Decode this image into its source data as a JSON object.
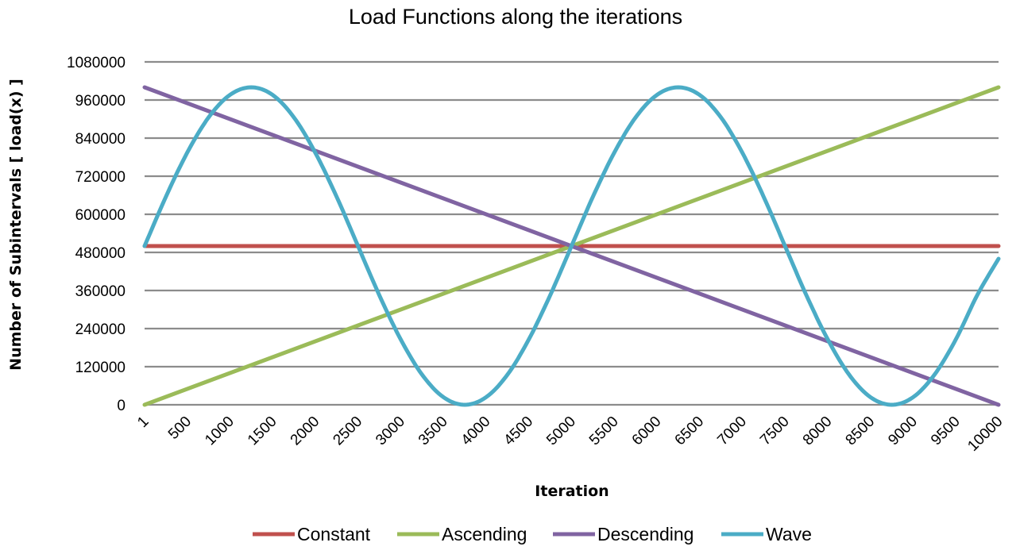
{
  "chart_data": {
    "type": "line",
    "title": "Load Functions along the iterations",
    "xlabel": "Iteration",
    "ylabel": "Number of Subintervals  [ load(x) ]",
    "xlim": [
      1,
      10000
    ],
    "ylim": [
      0,
      1080000
    ],
    "x_ticks": [
      "1",
      "500",
      "1000",
      "1500",
      "2000",
      "2500",
      "3000",
      "3500",
      "4000",
      "4500",
      "5000",
      "5500",
      "6000",
      "6500",
      "7000",
      "7500",
      "8000",
      "8500",
      "9000",
      "9500",
      "10000"
    ],
    "y_ticks": [
      "0",
      "120000",
      "240000",
      "360000",
      "480000",
      "600000",
      "720000",
      "840000",
      "960000",
      "1080000"
    ],
    "grid": true,
    "legend_position": "bottom",
    "series": [
      {
        "name": "Constant",
        "color": "#c0504d",
        "x": [
          1,
          10000
        ],
        "y": [
          500000,
          500000
        ]
      },
      {
        "name": "Ascending",
        "color": "#9bbb59",
        "x": [
          1,
          2500,
          5000,
          7500,
          10000
        ],
        "y": [
          0,
          250000,
          500000,
          750000,
          1000000
        ]
      },
      {
        "name": "Descending",
        "color": "#8064a2",
        "x": [
          1,
          2500,
          5000,
          7500,
          10000
        ],
        "y": [
          1000000,
          750000,
          500000,
          250000,
          0
        ]
      },
      {
        "name": "Wave",
        "color": "#4bacc6",
        "x": [
          1,
          250,
          500,
          750,
          1000,
          1250,
          1500,
          1750,
          2000,
          2250,
          2500,
          2750,
          3000,
          3250,
          3500,
          3750,
          4000,
          4250,
          4500,
          4750,
          5000,
          5250,
          5500,
          5750,
          6000,
          6250,
          6500,
          6750,
          7000,
          7250,
          7500,
          7750,
          8000,
          8250,
          8500,
          8750,
          9000,
          9250,
          9500,
          9750,
          10000
        ],
        "y": [
          500000,
          655000,
          794000,
          905000,
          976000,
          1000000,
          976000,
          905000,
          794000,
          655000,
          500000,
          345000,
          206000,
          95000,
          24000,
          0,
          24000,
          95000,
          206000,
          345000,
          500000,
          655000,
          794000,
          905000,
          976000,
          1000000,
          976000,
          905000,
          794000,
          655000,
          500000,
          345000,
          206000,
          95000,
          24000,
          0,
          24000,
          95000,
          206000,
          345000,
          460000
        ]
      }
    ]
  }
}
